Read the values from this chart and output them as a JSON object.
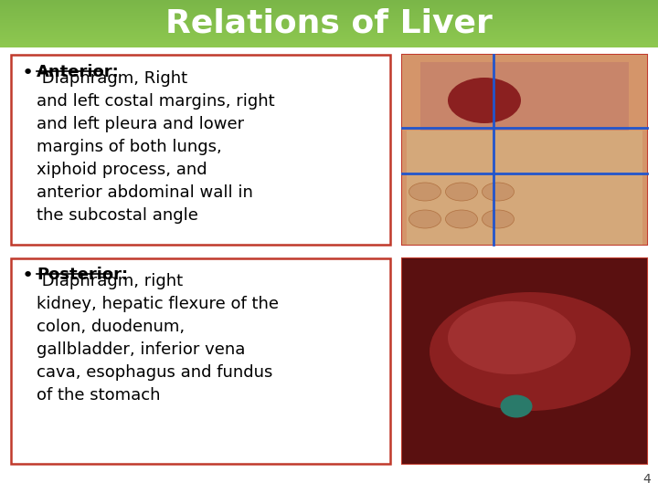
{
  "title": "Relations of Liver",
  "title_bg_color": "#7ab648",
  "title_text_color": "#ffffff",
  "slide_bg_color": "#ffffff",
  "bullet1_label": "Anterior:",
  "bullet1_text": " Diaphragm, Right\nand left costal margins, right\nand left pleura and lower\nmargins of both lungs,\nxiphoid process, and\nanterior abdominal wall in\nthe subcostal angle",
  "bullet2_label": "Posterior:",
  "bullet2_text": " Diaphragm, right\nkidney, hepatic flexure of the\ncolon, duodenum,\ngallbladder, inferior vena\ncava, esophagus and fundus\nof the stomach",
  "box_border_color": "#c0392b",
  "text_color": "#000000",
  "page_number": "4",
  "font_size_title": 26,
  "font_size_body": 13.0,
  "image1_placeholder_color": "#e8c9a0",
  "image2_placeholder_color": "#c8724a"
}
